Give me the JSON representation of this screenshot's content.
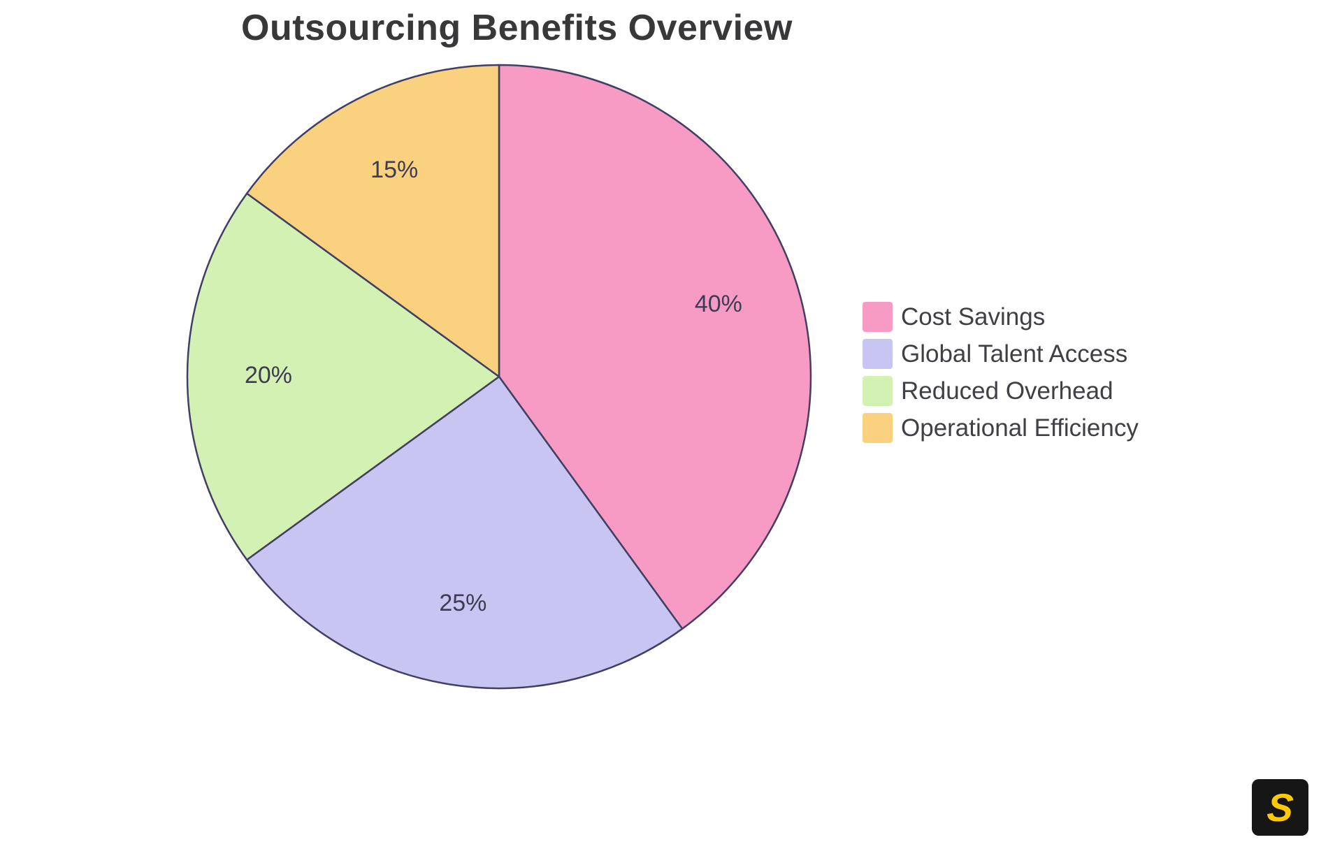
{
  "page": {
    "background_color": "#ffffff"
  },
  "chart_data": {
    "type": "pie",
    "title": "Outsourcing Benefits Overview",
    "labels": [
      "Cost Savings",
      "Global Talent Access",
      "Reduced Overhead",
      "Operational Efficiency"
    ],
    "values": [
      40,
      25,
      20,
      15
    ],
    "percent_labels": [
      "40%",
      "25%",
      "20%",
      "15%"
    ],
    "colors": [
      "#F79BC4",
      "#C9C5F2",
      "#D4F1B4",
      "#FAD27F"
    ],
    "stroke_color": "#413F63",
    "stroke_width": 2.5,
    "start_angle_deg": -90,
    "direction": "clockwise",
    "legend_position": "right",
    "label_color": "#3d3c52"
  },
  "logo": {
    "letter": "S",
    "background": "#161616",
    "color": "#ffc907"
  }
}
